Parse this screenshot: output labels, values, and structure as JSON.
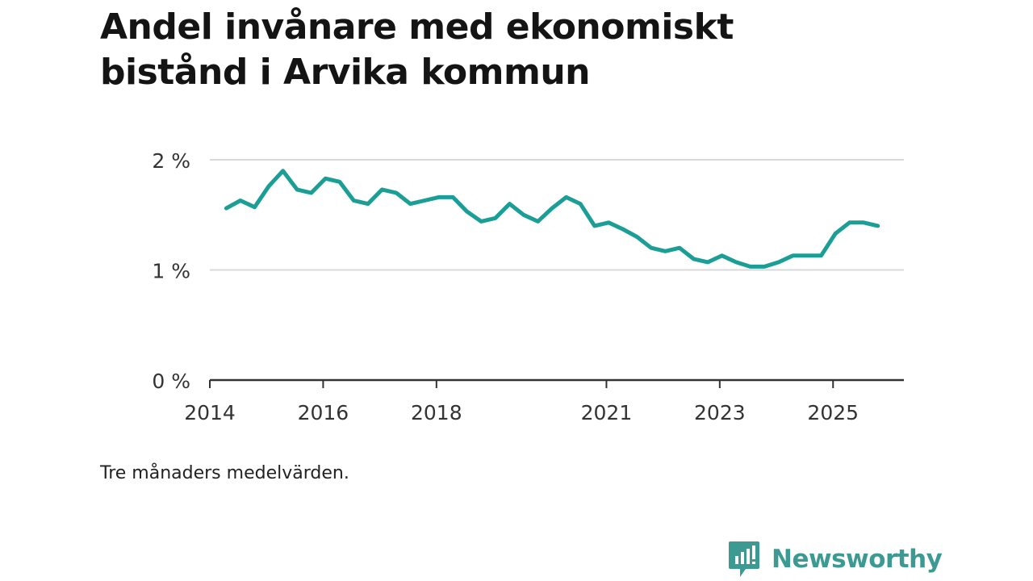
{
  "title_lines": [
    "Andel invånare med ekonomiskt",
    "bistånd i Arvika kommun"
  ],
  "footnote": "Tre månaders medelvärden.",
  "brand": {
    "name": "Newsworthy",
    "color": "#3d9a93",
    "icon": "bar-chart-speech-bubble-icon"
  },
  "colors": {
    "line": "#1a9e96",
    "grid": "#d9d9d9",
    "axis": "#333333",
    "text": "#333333"
  },
  "chart_data": {
    "type": "line",
    "title": "Andel invånare med ekonomiskt bistånd i Arvika kommun",
    "xlabel": "",
    "ylabel": "",
    "y_unit": "%",
    "ylim": [
      0,
      2
    ],
    "y_ticks": [
      0,
      1,
      2
    ],
    "y_tick_labels": [
      "0 %",
      "1 %",
      "2 %"
    ],
    "xlim": [
      2014.0,
      2026.25
    ],
    "x_ticks": [
      2014,
      2016,
      2018,
      2021,
      2023,
      2025
    ],
    "x_tick_labels": [
      "2014",
      "2016",
      "2018",
      "2021",
      "2023",
      "2025"
    ],
    "grid": true,
    "series": [
      {
        "name": "Andel invånare med ekonomiskt bistånd",
        "x": [
          2014.29,
          2014.54,
          2014.79,
          2015.04,
          2015.29,
          2015.54,
          2015.79,
          2016.04,
          2016.29,
          2016.54,
          2016.79,
          2017.04,
          2017.29,
          2017.54,
          2017.79,
          2018.04,
          2018.29,
          2018.54,
          2018.79,
          2019.04,
          2019.29,
          2019.54,
          2019.79,
          2020.04,
          2020.29,
          2020.54,
          2020.79,
          2021.04,
          2021.29,
          2021.54,
          2021.79,
          2022.04,
          2022.29,
          2022.54,
          2022.79,
          2023.04,
          2023.29,
          2023.54,
          2023.79,
          2024.04,
          2024.29,
          2024.54,
          2024.79,
          2025.04,
          2025.29,
          2025.54,
          2025.79
        ],
        "values": [
          1.56,
          1.63,
          1.57,
          1.76,
          1.9,
          1.73,
          1.7,
          1.83,
          1.8,
          1.63,
          1.6,
          1.73,
          1.7,
          1.6,
          1.63,
          1.66,
          1.66,
          1.53,
          1.44,
          1.47,
          1.6,
          1.5,
          1.44,
          1.56,
          1.66,
          1.6,
          1.4,
          1.43,
          1.37,
          1.3,
          1.2,
          1.17,
          1.2,
          1.1,
          1.07,
          1.13,
          1.07,
          1.03,
          1.03,
          1.07,
          1.13,
          1.13,
          1.13,
          1.33,
          1.43,
          1.43,
          1.4
        ]
      }
    ]
  }
}
